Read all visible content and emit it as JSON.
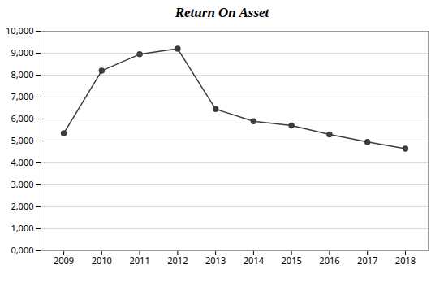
{
  "chart_data": {
    "type": "line",
    "title": "Return On Asset",
    "x": [
      2009,
      2010,
      2011,
      2012,
      2013,
      2014,
      2015,
      2016,
      2017,
      2018
    ],
    "values": [
      5350,
      8200,
      8950,
      9200,
      6450,
      5900,
      5700,
      5300,
      4950,
      4650
    ],
    "color": "#3d3d3d",
    "marker": "o",
    "xlim": [
      2008.4,
      2018.6
    ],
    "xticks": [
      2009,
      2010,
      2011,
      2012,
      2013,
      2014,
      2015,
      2016,
      2017,
      2018
    ],
    "ylim": [
      0,
      10000
    ],
    "yticks": [
      {
        "value": 0,
        "label": "0,000"
      },
      {
        "value": 1000,
        "label": "1,000"
      },
      {
        "value": 2000,
        "label": "2,000"
      },
      {
        "value": 3000,
        "label": "3,000"
      },
      {
        "value": 4000,
        "label": "4,000"
      },
      {
        "value": 5000,
        "label": "5,000"
      },
      {
        "value": 6000,
        "label": "6,000"
      },
      {
        "value": 7000,
        "label": "7,000"
      },
      {
        "value": 8000,
        "label": "8,000"
      },
      {
        "value": 9000,
        "label": "9,000"
      },
      {
        "value": 10000,
        "label": "10,000"
      }
    ],
    "grid": true
  }
}
